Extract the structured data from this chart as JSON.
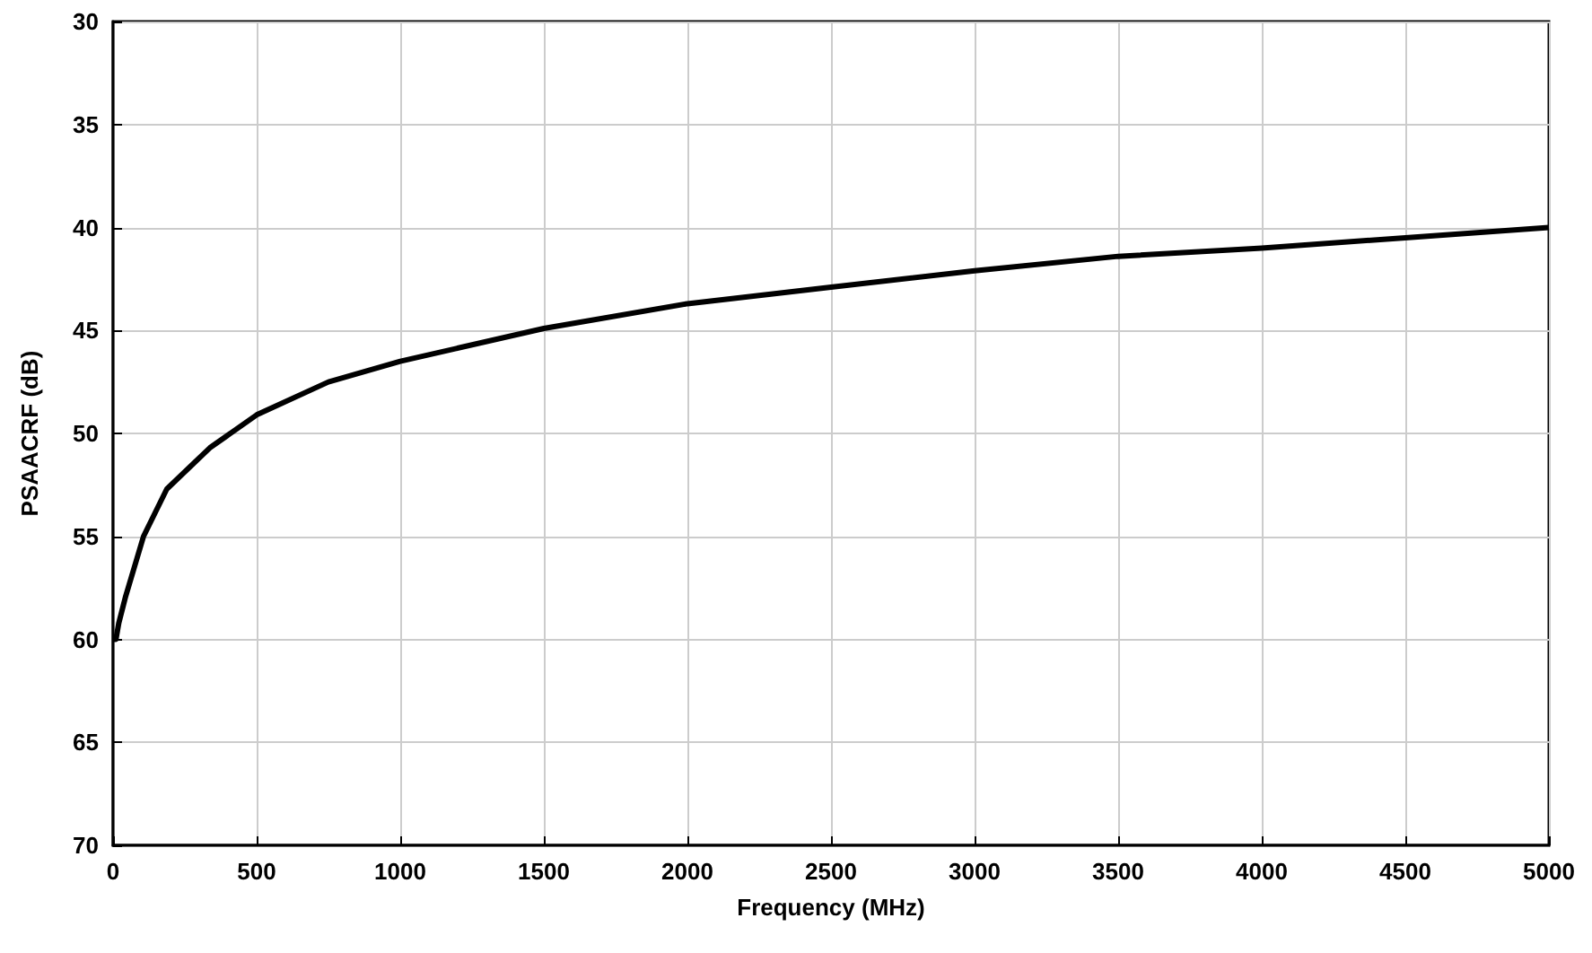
{
  "chart_data": {
    "type": "line",
    "xlabel": "Frequency (MHz)",
    "ylabel": "PSAACRF (dB)",
    "x": [
      1,
      10,
      20,
      44,
      106,
      187,
      337,
      500,
      750,
      1000,
      1500,
      2000,
      2500,
      3000,
      3500,
      4000,
      4500,
      5000
    ],
    "series": [
      {
        "color": "#000000",
        "values": [
          60,
          60,
          59.2,
          57.9,
          55,
          52.7,
          50.7,
          49.1,
          47.5,
          46.5,
          44.9,
          43.7,
          42.9,
          42.1,
          41.4,
          41,
          40.5,
          40
        ]
      }
    ],
    "xlim": [
      0,
      5000
    ],
    "xticks": [
      0,
      500,
      1000,
      1500,
      2000,
      2500,
      3000,
      3500,
      4000,
      4500,
      5000
    ],
    "ylim": [
      70,
      30
    ],
    "yticks": [
      30,
      35,
      40,
      45,
      50,
      55,
      60,
      65,
      70
    ],
    "grid": true,
    "marker": "none",
    "line_style": "solid"
  }
}
